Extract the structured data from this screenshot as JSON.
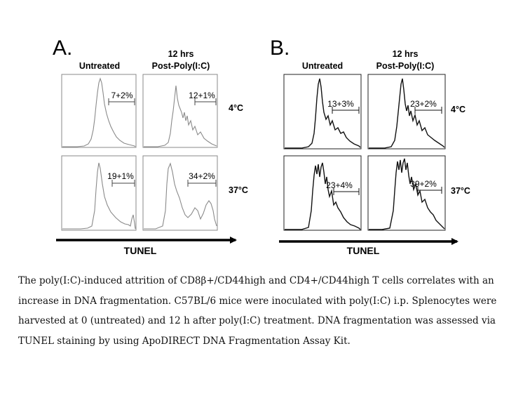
{
  "figure": {
    "panels": [
      {
        "letter": "A.",
        "columns": [
          "Untreated",
          "12 hrs",
          "Post-Poly(I:C)"
        ],
        "rows": [
          "4°C",
          "37°C"
        ],
        "values": [
          "7+2%",
          "12+1%",
          "19+1%",
          "34+2%"
        ],
        "axis_label": "TUNEL",
        "line_color": "#8a8a8a"
      },
      {
        "letter": "B.",
        "columns": [
          "Untreated",
          "12 hrs",
          "Post-Poly(I:C)"
        ],
        "rows": [
          "4°C",
          "37°C"
        ],
        "values": [
          "13+3%",
          "23+2%",
          "23+4%",
          "39+2%"
        ],
        "axis_label": "TUNEL",
        "line_color": "#111111"
      }
    ]
  },
  "caption": "The poly(I:C)-induced attrition of CD8β+/CD44high and CD4+/CD44high T cells correlates with an increase in DNA fragmentation. C57BL/6 mice were inoculated with poly(I:C) i.p. Splenocytes were harvested at 0 (untreated) and 12 h after poly(I:C) treatment. DNA fragmentation was assessed via TUNEL staining by using ApoDIRECT DNA Fragmentation Assay Kit."
}
